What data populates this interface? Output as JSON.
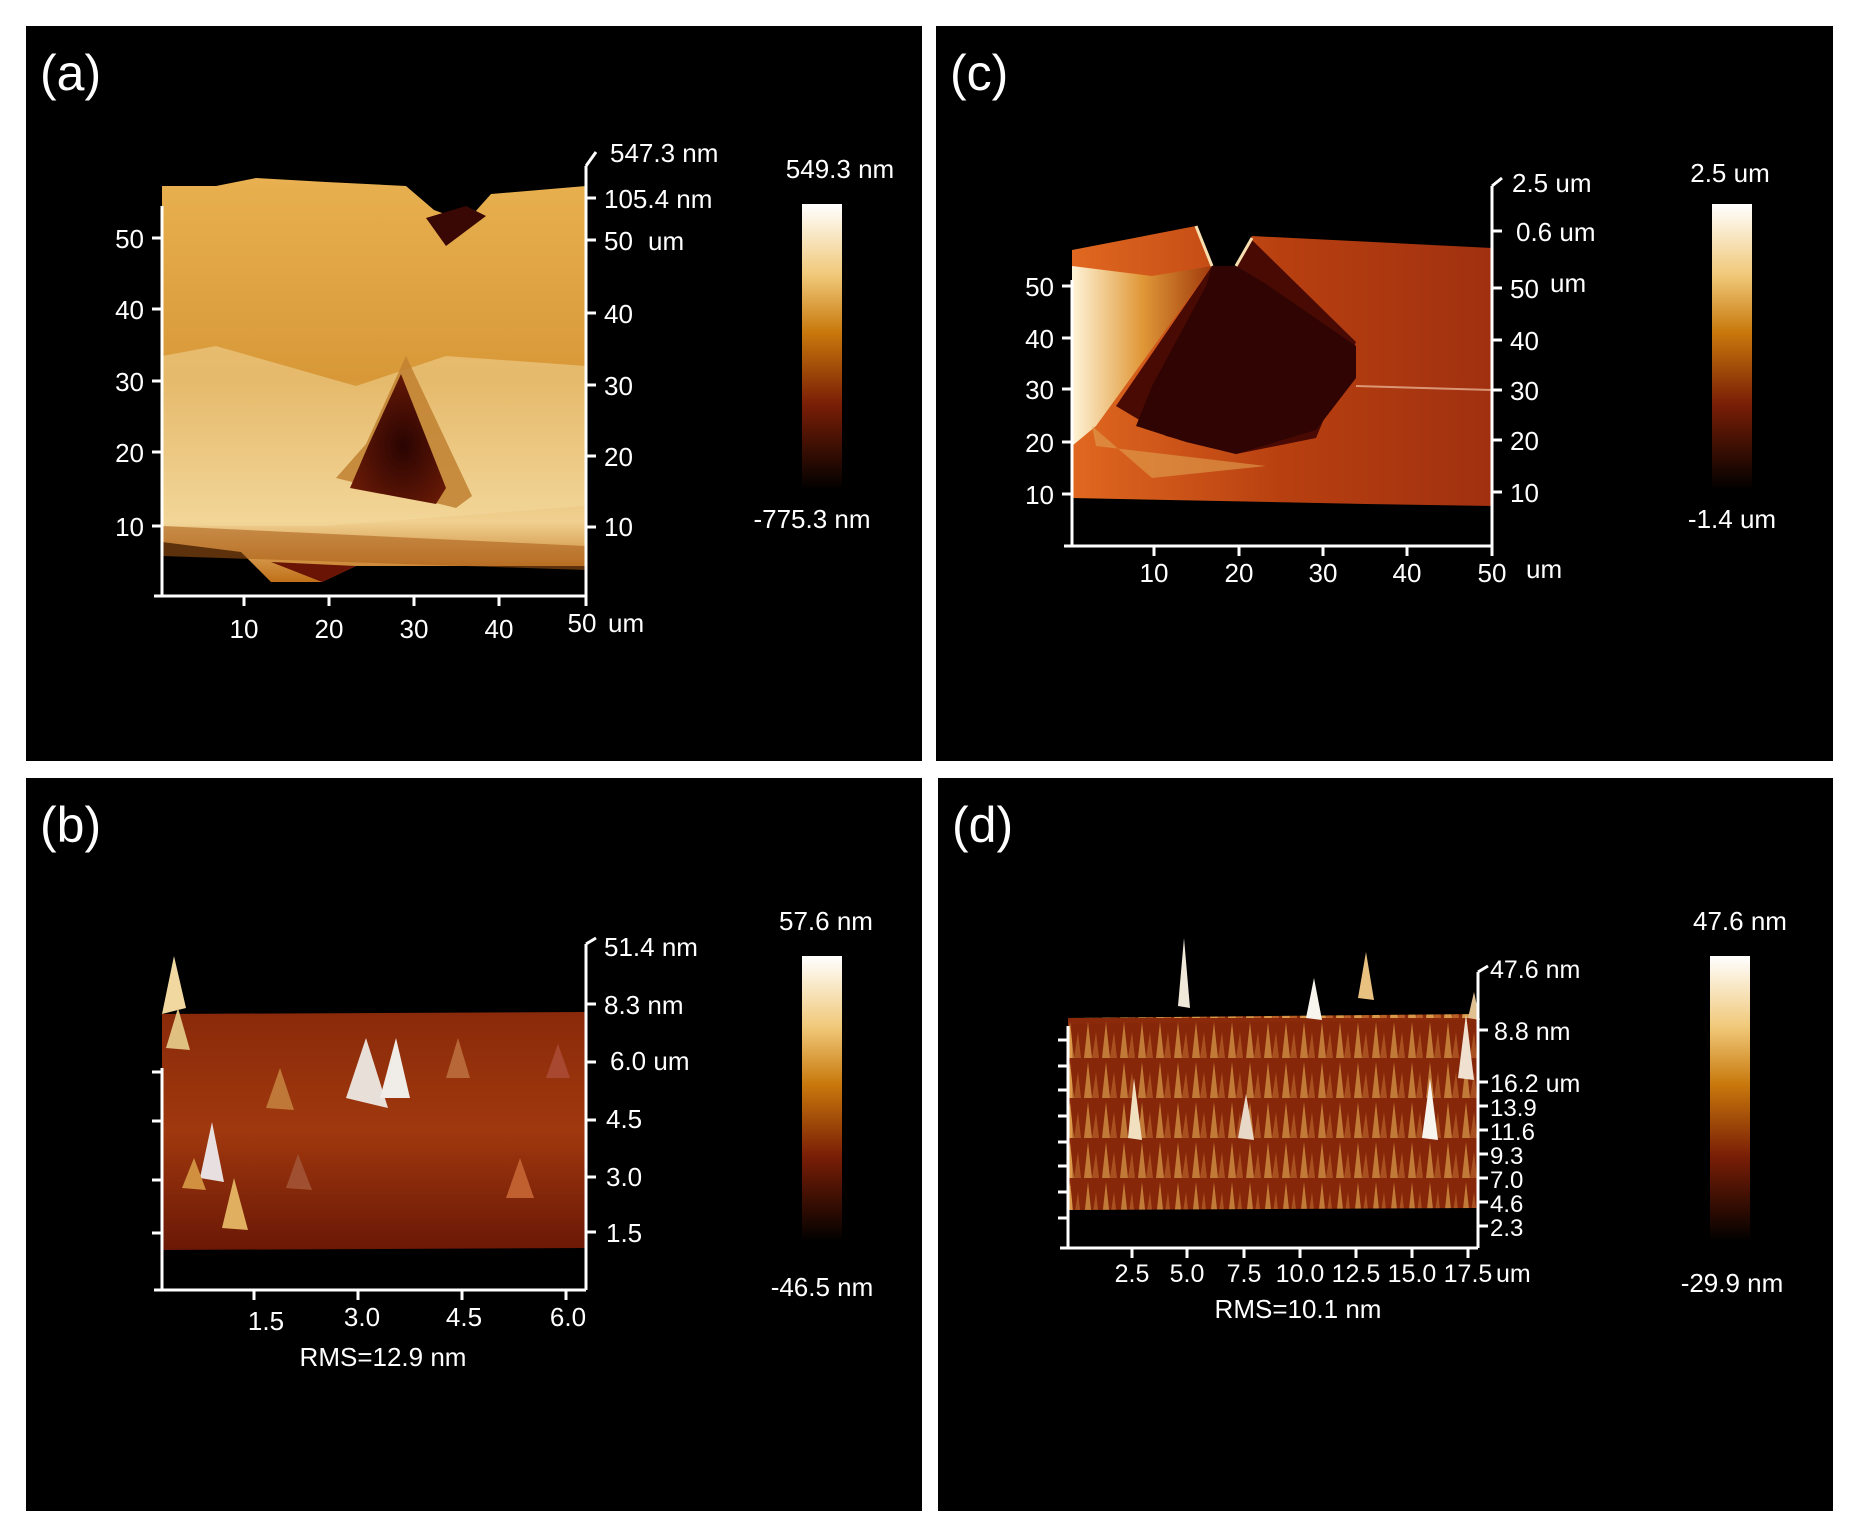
{
  "panels": [
    {
      "label": "(a)",
      "x_ticks": [
        "10",
        "20",
        "30",
        "40",
        "50"
      ],
      "x_unit": "um",
      "y_ticks": [
        "10",
        "20",
        "30",
        "40",
        "50"
      ],
      "right_ticks": [
        "10",
        "20",
        "30",
        "40",
        "50"
      ],
      "right_unit": "um",
      "z_labels": [
        "547.3 nm",
        "105.4 nm"
      ],
      "colorbar_max": "549.3 nm",
      "colorbar_min": "-775.3 nm",
      "rms": ""
    },
    {
      "label": "(b)",
      "x_ticks": [
        "1.5",
        "3.0",
        "4.5",
        "6.0"
      ],
      "right_ticks": [
        "1.5",
        "3.0",
        "4.5"
      ],
      "right_top": "6.0 um",
      "z_labels": [
        "51.4 nm",
        "8.3 nm"
      ],
      "colorbar_max": "57.6 nm",
      "colorbar_min": "-46.5 nm",
      "rms": "RMS=12.9 nm"
    },
    {
      "label": "(c)",
      "x_ticks": [
        "10",
        "20",
        "30",
        "40",
        "50"
      ],
      "x_unit": "um",
      "y_ticks": [
        "10",
        "20",
        "30",
        "40",
        "50"
      ],
      "right_ticks": [
        "10",
        "20",
        "30",
        "40",
        "50"
      ],
      "right_unit": "um",
      "z_labels": [
        "2.5 um",
        "0.6 um"
      ],
      "colorbar_max": "2.5 um",
      "colorbar_min": "-1.4 um",
      "rms": ""
    },
    {
      "label": "(d)",
      "x_ticks": [
        "2.5",
        "5.0",
        "7.5",
        "10.0",
        "12.5",
        "15.0",
        "17.5"
      ],
      "x_unit": "um",
      "right_ticks": [
        "2.3",
        "4.6",
        "7.0",
        "9.3",
        "11.6",
        "13.9"
      ],
      "right_top": "16.2 um",
      "z_labels": [
        "47.6 nm",
        "8.8 nm"
      ],
      "colorbar_max": "47.6 nm",
      "colorbar_min": "-29.9 nm",
      "rms": "RMS=10.1 nm"
    }
  ],
  "colors": {
    "background": "#000000",
    "colormap": [
      "#fffaf0",
      "#f0c870",
      "#d08a18",
      "#9a3a0a",
      "#4a0a02",
      "#000000"
    ]
  }
}
